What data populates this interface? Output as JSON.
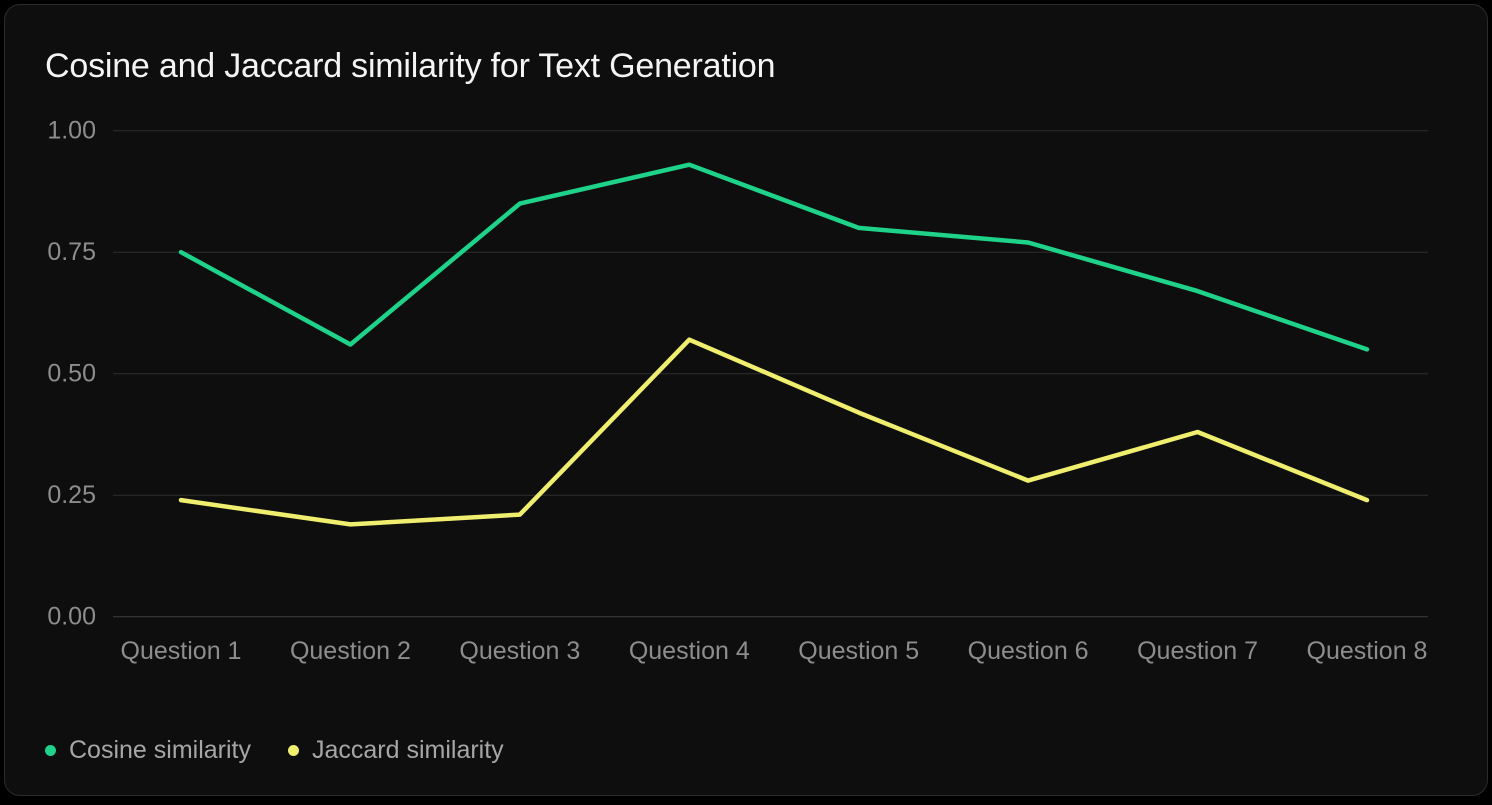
{
  "chart_data": {
    "type": "line",
    "title": "Cosine and Jaccard similarity for Text Generation",
    "categories": [
      "Question 1",
      "Question 2",
      "Question 3",
      "Question 4",
      "Question 5",
      "Question 6",
      "Question 7",
      "Question 8"
    ],
    "series": [
      {
        "name": "Cosine similarity",
        "color": "#1fd28a",
        "values": [
          0.75,
          0.56,
          0.85,
          0.93,
          0.8,
          0.77,
          0.67,
          0.55
        ]
      },
      {
        "name": "Jaccard similarity",
        "color": "#f0ee6e",
        "values": [
          0.24,
          0.19,
          0.21,
          0.57,
          0.42,
          0.28,
          0.38,
          0.24
        ]
      }
    ],
    "xlabel": "",
    "ylabel": "",
    "y_axis": {
      "min": 0,
      "max": 1,
      "tick_labels": [
        "1.00",
        "0.75",
        "0.50",
        "0.25",
        "0.00"
      ]
    },
    "grid": "horizontal",
    "legend_position": "bottom-left"
  },
  "theme": {
    "page_background": "#000000",
    "card_background": "#0e0e0e",
    "card_border": "#2b2b2b",
    "title_color": "#f4f4f4",
    "axis_label_color": "#8d8d8d",
    "legend_text_color": "#a6a6a6",
    "gridline_color": "#2d2d2d",
    "baseline_color": "#3f3f3f"
  }
}
